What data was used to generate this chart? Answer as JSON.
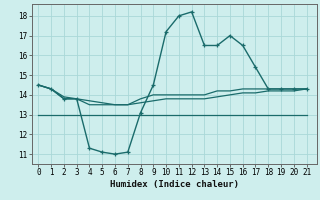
{
  "title": "",
  "xlabel": "Humidex (Indice chaleur)",
  "ylabel": "",
  "bg_color": "#ceeeed",
  "grid_color": "#aad8d8",
  "line_color": "#1a6b6b",
  "x_ticks": [
    0,
    1,
    2,
    3,
    4,
    5,
    6,
    7,
    8,
    9,
    10,
    11,
    12,
    13,
    14,
    15,
    16,
    17,
    18,
    19,
    20,
    21
  ],
  "y_ticks": [
    11,
    12,
    13,
    14,
    15,
    16,
    17,
    18
  ],
  "ylim": [
    10.5,
    18.6
  ],
  "xlim": [
    -0.5,
    21.8
  ],
  "series": {
    "main": {
      "x": [
        0,
        1,
        2,
        3,
        4,
        5,
        6,
        7,
        8,
        9,
        10,
        11,
        12,
        13,
        14,
        15,
        16,
        17,
        18,
        19,
        20,
        21
      ],
      "y": [
        14.5,
        14.3,
        13.8,
        13.8,
        11.3,
        11.1,
        11.0,
        11.1,
        13.1,
        14.5,
        17.2,
        18.0,
        18.2,
        16.5,
        16.5,
        17.0,
        16.5,
        15.4,
        14.3,
        14.3,
        14.3,
        14.3
      ]
    },
    "line2": {
      "x": [
        0,
        1,
        2,
        3,
        4,
        5,
        6,
        7,
        8,
        9,
        10,
        11,
        12,
        13,
        14,
        15,
        16,
        17,
        18,
        19,
        20,
        21
      ],
      "y": [
        14.5,
        14.3,
        13.8,
        13.8,
        13.5,
        13.5,
        13.5,
        13.5,
        13.8,
        14.0,
        14.0,
        14.0,
        14.0,
        14.0,
        14.2,
        14.2,
        14.3,
        14.3,
        14.3,
        14.3,
        14.3,
        14.3
      ]
    },
    "line3": {
      "x": [
        0,
        1,
        2,
        3,
        4,
        5,
        6,
        7,
        8,
        9,
        10,
        11,
        12,
        13,
        14,
        15,
        16,
        17,
        18,
        19,
        20,
        21
      ],
      "y": [
        14.5,
        14.3,
        13.9,
        13.8,
        13.7,
        13.6,
        13.5,
        13.5,
        13.6,
        13.7,
        13.8,
        13.8,
        13.8,
        13.8,
        13.9,
        14.0,
        14.1,
        14.1,
        14.2,
        14.2,
        14.2,
        14.3
      ]
    },
    "line4": {
      "x": [
        0,
        21
      ],
      "y": [
        13.0,
        13.0
      ]
    }
  }
}
